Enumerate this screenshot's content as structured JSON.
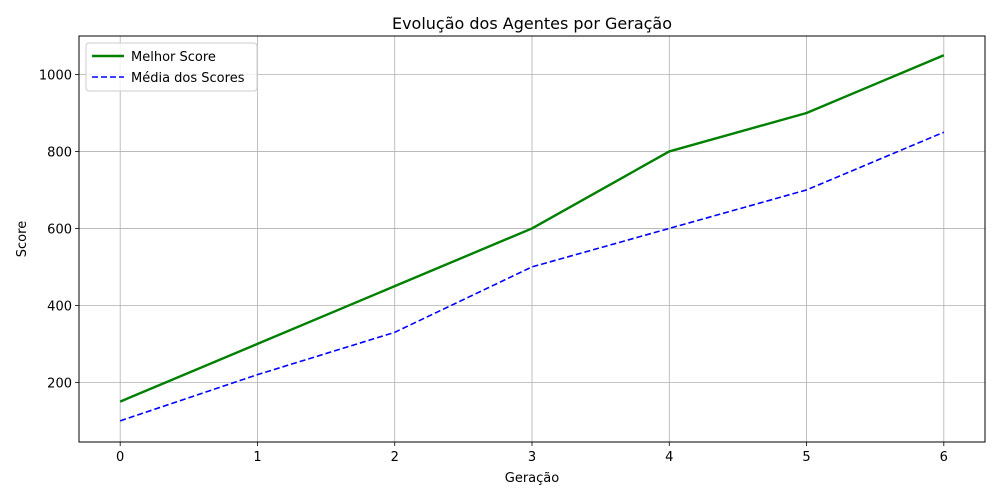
{
  "chart_data": {
    "type": "line",
    "title": "Evolução dos Agentes por Geração",
    "xlabel": "Geração",
    "ylabel": "Score",
    "x": [
      0,
      1,
      2,
      3,
      4,
      5,
      6
    ],
    "xlim": [
      -0.3,
      6.3
    ],
    "ylim": [
      45,
      1100
    ],
    "xticks": [
      0,
      1,
      2,
      3,
      4,
      5,
      6
    ],
    "yticks": [
      200,
      400,
      600,
      800,
      1000
    ],
    "grid": true,
    "legend_position": "upper-left",
    "series": [
      {
        "name": "Melhor Score",
        "values": [
          150,
          300,
          450,
          600,
          800,
          900,
          1050
        ],
        "color": "#008000",
        "style": "solid"
      },
      {
        "name": "Média dos Scores",
        "values": [
          100,
          220,
          330,
          500,
          600,
          700,
          850
        ],
        "color": "#0000ff",
        "style": "dashed"
      }
    ]
  }
}
